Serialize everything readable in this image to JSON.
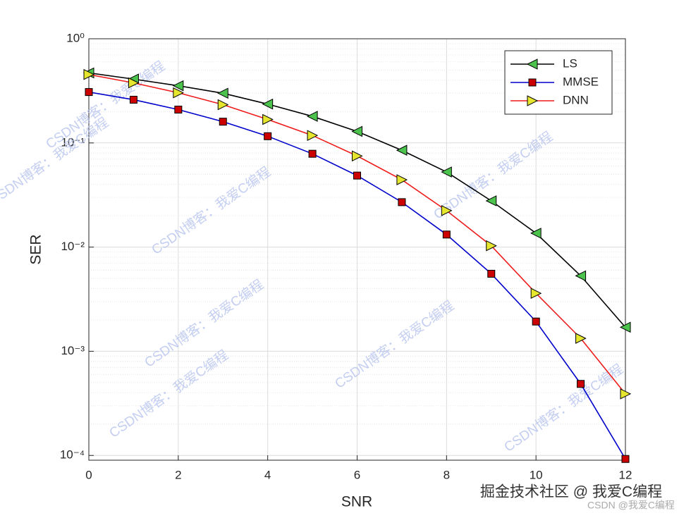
{
  "chart_data": {
    "type": "line",
    "xlabel": "SNR",
    "ylabel": "SER",
    "x": [
      0,
      1,
      2,
      3,
      4,
      5,
      6,
      7,
      8,
      9,
      10,
      11,
      12
    ],
    "series": [
      {
        "name": "LS",
        "color": "#000000",
        "marker": "triangle-left",
        "marker_color": "#4cc34c",
        "values": [
          0.47,
          0.41,
          0.354,
          0.3,
          0.236,
          0.18,
          0.129,
          0.085,
          0.0526,
          0.0278,
          0.0136,
          0.0053,
          0.0017
        ]
      },
      {
        "name": "MMSE",
        "color": "#0000cc",
        "marker": "square",
        "marker_color": "#cc0000",
        "values": [
          0.308,
          0.26,
          0.209,
          0.16,
          0.116,
          0.0787,
          0.0486,
          0.027,
          0.0132,
          0.00555,
          0.00193,
          0.000486,
          9.25e-05
        ]
      },
      {
        "name": "DNN",
        "color": "#ee1c1c",
        "marker": "triangle-right",
        "marker_color": "#e6e62e",
        "values": [
          0.454,
          0.377,
          0.303,
          0.233,
          0.168,
          0.118,
          0.075,
          0.0443,
          0.0224,
          0.0103,
          0.0036,
          0.00133,
          0.00039
        ]
      }
    ],
    "xlim": [
      0,
      12
    ],
    "xticks": [
      0,
      2,
      4,
      6,
      8,
      10,
      12
    ],
    "ylim": [
      9e-05,
      1
    ],
    "log_y": true,
    "yticks": [
      {
        "value": 0.0001,
        "label": "10⁻⁴"
      },
      {
        "value": 0.001,
        "label": "10⁻³"
      },
      {
        "value": 0.01,
        "label": "10⁻²"
      },
      {
        "value": 0.1,
        "label": "10⁻¹"
      },
      {
        "value": 1,
        "label": "10⁰"
      }
    ],
    "grid": true,
    "minor_grid": true,
    "legend": "upper right",
    "watermarks": [
      "CSDN博客：我爱C编程",
      "掘金技术社区 @ 我爱C编程",
      "CSDN @我爱C编程"
    ]
  }
}
